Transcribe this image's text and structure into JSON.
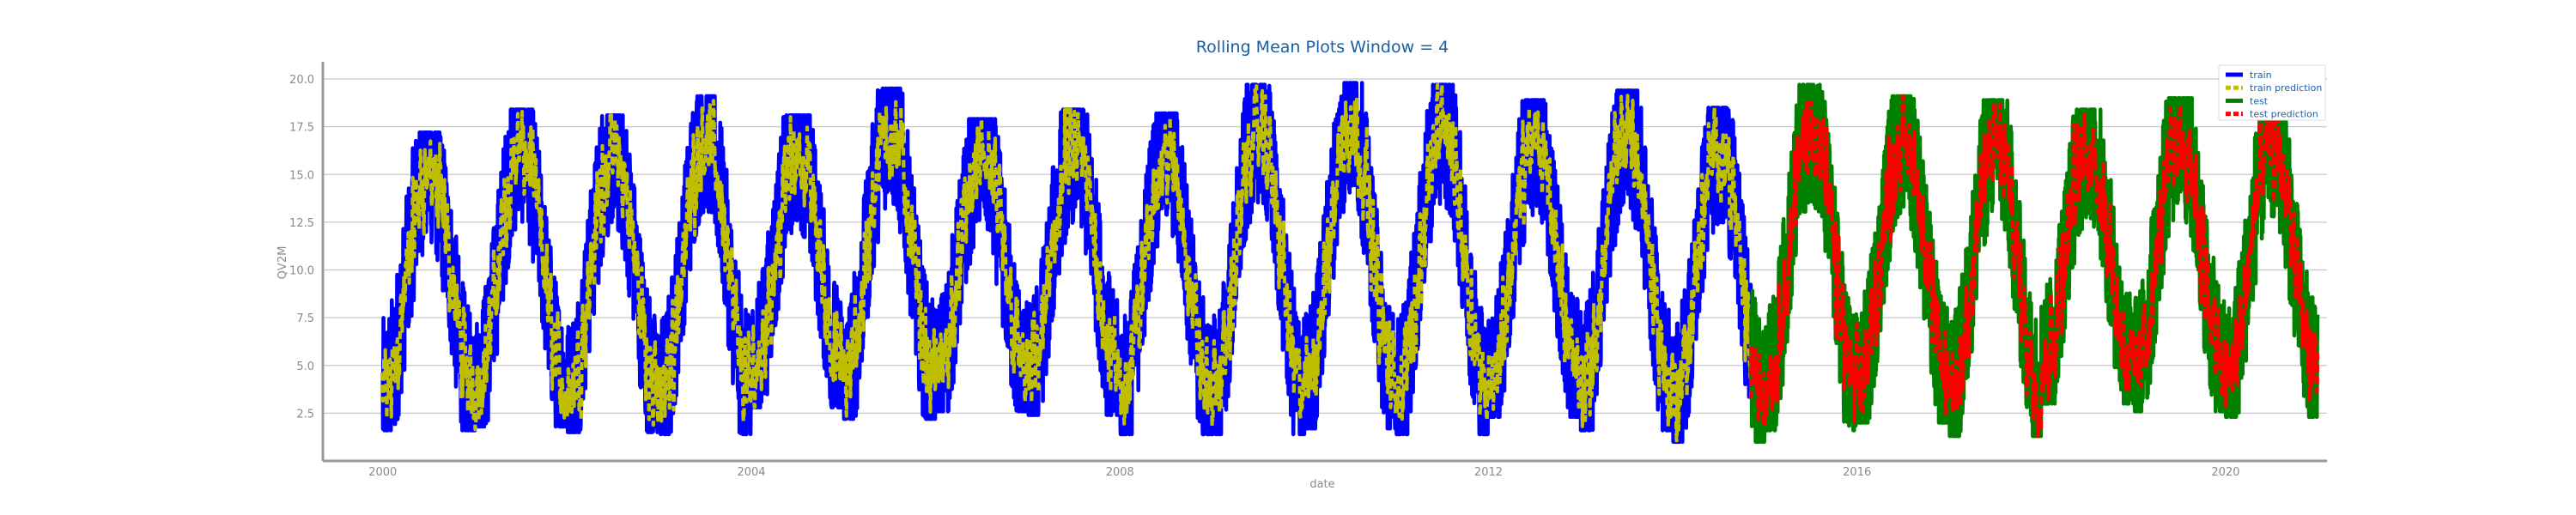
{
  "chart_data": {
    "type": "line",
    "title": "Rolling Mean Plots Window = 4",
    "xlabel": "date",
    "ylabel": "QV2M",
    "xlim": [
      1999.35,
      2021.1
    ],
    "ylim": [
      0.0,
      20.9
    ],
    "x_ticks": [
      "2000",
      "2004",
      "2008",
      "2012",
      "2016",
      "2020"
    ],
    "y_ticks": [
      "2.5",
      "5.0",
      "7.5",
      "10.0",
      "12.5",
      "15.0",
      "17.5",
      "20.0"
    ],
    "grid": "horizontal",
    "legend_position": "top-right",
    "x_range_train": [
      2000.0,
      2014.85
    ],
    "x_range_test": [
      2014.85,
      2021.0
    ],
    "seasonal_trough_month": "January",
    "seasonal_peak_month": "July",
    "annual_peaks": [
      {
        "year": 2000,
        "max": 17.2,
        "min": 1.6
      },
      {
        "year": 2001,
        "max": 18.4,
        "min": 1.8
      },
      {
        "year": 2002,
        "max": 18.1,
        "min": 1.5
      },
      {
        "year": 2003,
        "max": 19.1,
        "min": 1.4
      },
      {
        "year": 2004,
        "max": 18.1,
        "min": 2.8
      },
      {
        "year": 2005,
        "max": 19.5,
        "min": 2.2
      },
      {
        "year": 2006,
        "max": 17.9,
        "min": 2.6
      },
      {
        "year": 2007,
        "max": 18.4,
        "min": 2.4
      },
      {
        "year": 2008,
        "max": 18.2,
        "min": 1.4
      },
      {
        "year": 2009,
        "max": 19.7,
        "min": 1.4
      },
      {
        "year": 2010,
        "max": 19.8,
        "min": 1.7
      },
      {
        "year": 2011,
        "max": 19.7,
        "min": 1.4
      },
      {
        "year": 2012,
        "max": 18.9,
        "min": 2.3
      },
      {
        "year": 2013,
        "max": 19.4,
        "min": 1.6
      },
      {
        "year": 2014,
        "max": 18.5,
        "min": 1.0
      },
      {
        "year": 2015,
        "max": 19.7,
        "min": 1.6
      },
      {
        "year": 2016,
        "max": 19.1,
        "min": 2.0
      },
      {
        "year": 2017,
        "max": 18.9,
        "min": 1.3
      },
      {
        "year": 2018,
        "max": 18.4,
        "min": 3.0
      },
      {
        "year": 2019,
        "max": 19.0,
        "min": 2.6
      },
      {
        "year": 2020,
        "max": 18.6,
        "min": 2.3
      },
      {
        "year": 2021,
        "max": 10.5,
        "min": 2.0
      }
    ],
    "series": [
      {
        "name": "train",
        "color": "#0000ff",
        "style": "solid",
        "role": "train"
      },
      {
        "name": "train prediction",
        "color": "#bfbf00",
        "style": "dashed",
        "role": "train"
      },
      {
        "name": "test",
        "color": "#008000",
        "style": "solid",
        "role": "test"
      },
      {
        "name": "test prediction",
        "color": "#ff0000",
        "style": "dashed",
        "role": "test"
      }
    ]
  },
  "colors": {
    "title": "#1a5fa0",
    "legend_text": "#1f5fa8",
    "axis_text": "#8a8a8a",
    "spine": "#999999",
    "grid": "#c8c8c8"
  }
}
